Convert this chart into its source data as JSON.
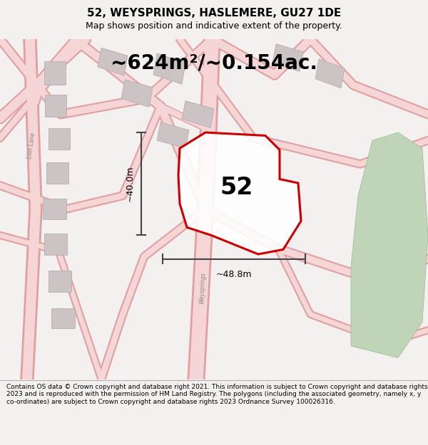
{
  "title": "52, WEYSPRINGS, HASLEMERE, GU27 1DE",
  "subtitle": "Map shows position and indicative extent of the property.",
  "area_text": "~624m²/~0.154ac.",
  "label_52": "52",
  "dim_height": "~40.0m",
  "dim_width": "~48.8m",
  "footer": "Contains OS data © Crown copyright and database right 2021. This information is subject to Crown copyright and database rights 2023 and is reproduced with the permission of HM Land Registry. The polygons (including the associated geometry, namely x, y co-ordinates) are subject to Crown copyright and database rights 2023 Ordnance Survey 100026316.",
  "bg_color": "#f5f0f0",
  "road_fill": "#f5d5d5",
  "road_edge": "#e0a0a0",
  "building_fill": "#ccc4c4",
  "building_edge": "#b0a8a8",
  "green_fill": "#c0d4b8",
  "green_edge": "#98b890",
  "plot_fill": [
    1.0,
    1.0,
    1.0,
    0.88
  ],
  "plot_edge": "#cc0000",
  "dim_color": "#444444",
  "title_fontsize": 11,
  "subtitle_fontsize": 9,
  "area_fontsize": 20,
  "label_fontsize": 24,
  "dim_fontsize": 9,
  "footer_fontsize": 6.5,
  "figsize": [
    6.0,
    6.25
  ],
  "dpi": 100
}
